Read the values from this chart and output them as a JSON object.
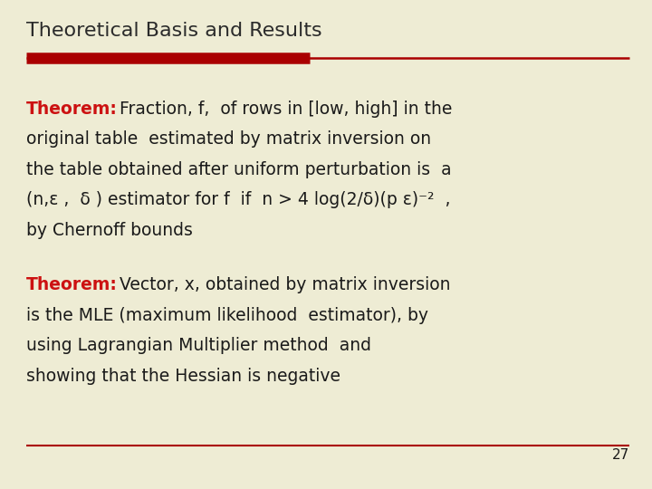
{
  "title": "Theoretical Basis and Results",
  "background_color": "#EEECD4",
  "title_color": "#2B2B2B",
  "title_fontsize": 16,
  "red_color": "#CC1111",
  "dark_color": "#1A1A1A",
  "page_number": "27",
  "theorem1_label": "Theorem:",
  "theorem1_rest_line1": " Fraction, f,  of rows in [low, high] in the",
  "theorem1_line2": "original table  estimated by matrix inversion on",
  "theorem1_line3": "the table obtained after uniform perturbation is  a",
  "theorem1_line4": "(n,ε ,  δ ) estimator for f  if  n > 4 log(2/δ)(p ε)⁻²  ,",
  "theorem1_line5": "by Chernoff bounds",
  "theorem2_label": "Theorem:",
  "theorem2_rest_line1": " Vector, x, obtained by matrix inversion",
  "theorem2_line2": "is the MLE (maximum likelihood  estimator), by",
  "theorem2_line3": "using Lagrangian Multiplier method  and",
  "theorem2_line4": "showing that the Hessian is negative",
  "body_fontsize": 13.5,
  "theorem_label_fontsize": 13.5,
  "page_fontsize": 11
}
